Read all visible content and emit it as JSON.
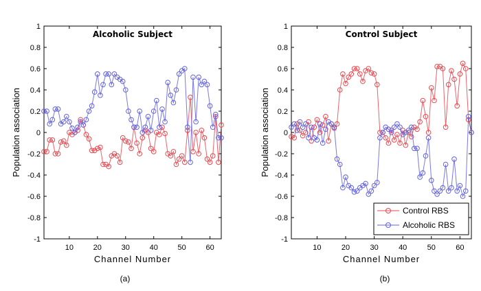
{
  "chart_data": [
    {
      "type": "line",
      "title": "Alcoholic Subject",
      "xlabel": "Channel Number",
      "ylabel": "Population association",
      "caption": "(a)",
      "xlim": [
        1,
        64
      ],
      "ylim": [
        -1,
        1
      ],
      "xticks": [
        10,
        20,
        30,
        40,
        50,
        60
      ],
      "yticks": [
        -1,
        -0.8,
        -0.6,
        -0.4,
        -0.2,
        0,
        0.2,
        0.4,
        0.6,
        0.8,
        1
      ],
      "ytick_labels": [
        "-1",
        "-0.8",
        "-0.6",
        "-0.4",
        "-0.2",
        "0",
        "0.2",
        "0.4",
        "0.6",
        "0.8",
        "1"
      ],
      "legend": false,
      "series": [
        {
          "color": "#e8474f",
          "marker": "circle",
          "x": [
            1,
            2,
            3,
            4,
            5,
            6,
            7,
            8,
            9,
            10,
            11,
            12,
            13,
            14,
            15,
            16,
            17,
            18,
            19,
            20,
            21,
            22,
            23,
            24,
            25,
            26,
            27,
            28,
            29,
            30,
            31,
            32,
            33,
            34,
            35,
            36,
            37,
            38,
            39,
            40,
            41,
            42,
            43,
            44,
            45,
            46,
            47,
            48,
            49,
            50,
            51,
            52,
            53,
            54,
            55,
            56,
            57,
            58,
            59,
            60,
            61,
            62,
            63,
            64
          ],
          "y": [
            -0.18,
            -0.18,
            -0.07,
            -0.07,
            -0.2,
            -0.2,
            -0.09,
            -0.08,
            -0.12,
            0.0,
            -0.02,
            0.0,
            0.02,
            0.12,
            0.07,
            -0.02,
            -0.06,
            -0.17,
            -0.17,
            -0.15,
            -0.14,
            -0.3,
            -0.3,
            -0.32,
            -0.22,
            -0.2,
            -0.22,
            -0.28,
            -0.05,
            -0.08,
            -0.09,
            -0.15,
            0.05,
            -0.1,
            -0.2,
            -0.05,
            0.02,
            0.0,
            -0.15,
            -0.18,
            0.0,
            -0.02,
            0.05,
            -0.01,
            -0.2,
            -0.22,
            -0.18,
            -0.3,
            -0.25,
            -0.22,
            -0.28,
            0.02,
            0.33,
            -0.18,
            0.0,
            -0.2,
            0.02,
            -0.05,
            -0.25,
            -0.28,
            -0.22,
            0.15,
            -0.28,
            0.07
          ]
        },
        {
          "color": "#6060e0",
          "marker": "circle",
          "x": [
            1,
            2,
            3,
            4,
            5,
            6,
            7,
            8,
            9,
            10,
            11,
            12,
            13,
            14,
            15,
            16,
            17,
            18,
            19,
            20,
            21,
            22,
            23,
            24,
            25,
            26,
            27,
            28,
            29,
            30,
            31,
            32,
            33,
            34,
            35,
            36,
            37,
            38,
            39,
            40,
            41,
            42,
            43,
            44,
            45,
            46,
            47,
            48,
            49,
            50,
            51,
            52,
            53,
            54,
            55,
            56,
            57,
            58,
            59,
            60,
            61,
            62,
            63,
            64
          ],
          "y": [
            0.2,
            0.2,
            0.08,
            0.12,
            0.22,
            0.22,
            0.08,
            0.1,
            0.15,
            0.1,
            0.04,
            0.0,
            0.05,
            0.1,
            0.07,
            0.12,
            0.2,
            0.25,
            0.38,
            0.55,
            0.35,
            0.45,
            0.55,
            0.55,
            0.45,
            0.55,
            0.52,
            0.5,
            0.48,
            0.4,
            0.2,
            0.12,
            0.05,
            0.05,
            0.2,
            0.0,
            0.05,
            0.15,
            0.02,
            0.2,
            0.3,
            0.05,
            0.22,
            0.1,
            0.47,
            0.35,
            0.28,
            0.4,
            0.55,
            0.58,
            0.6,
            0.05,
            -0.28,
            0.52,
            0.1,
            0.52,
            0.45,
            0.48,
            0.45,
            0.25,
            0.05,
            0.17,
            -0.05,
            -0.05
          ]
        }
      ]
    },
    {
      "type": "line",
      "title": "Control Subject",
      "xlabel": "Channel Number",
      "ylabel": "Population association",
      "caption": "(b)",
      "xlim": [
        1,
        64
      ],
      "ylim": [
        -1,
        1
      ],
      "xticks": [
        10,
        20,
        30,
        40,
        50,
        60
      ],
      "yticks": [
        -1,
        -0.8,
        -0.6,
        -0.4,
        -0.2,
        0,
        0.2,
        0.4,
        0.6,
        0.8,
        1
      ],
      "ytick_labels": [
        "-1",
        "-0.8",
        "-0.6",
        "-0.4",
        "-0.2",
        "0",
        "0.2",
        "0.4",
        "0.6",
        "0.8",
        "1"
      ],
      "legend": "bottom-right",
      "series": [
        {
          "name": "Control RBS",
          "color": "#e8474f",
          "marker": "circle",
          "x": [
            1,
            2,
            3,
            4,
            5,
            6,
            7,
            8,
            9,
            10,
            11,
            12,
            13,
            14,
            15,
            16,
            17,
            18,
            19,
            20,
            21,
            22,
            23,
            24,
            25,
            26,
            27,
            28,
            29,
            30,
            31,
            32,
            33,
            34,
            35,
            36,
            37,
            38,
            39,
            40,
            41,
            42,
            43,
            44,
            45,
            46,
            47,
            48,
            49,
            50,
            51,
            52,
            53,
            54,
            55,
            56,
            57,
            58,
            59,
            60,
            61,
            62,
            63,
            64
          ],
          "y": [
            -0.04,
            -0.05,
            0.08,
            0.02,
            -0.03,
            0.0,
            0.1,
            -0.08,
            0.05,
            0.12,
            0.0,
            0.07,
            0.15,
            -0.08,
            0.08,
            0.04,
            0.08,
            0.4,
            0.55,
            0.46,
            0.52,
            0.55,
            0.6,
            0.6,
            0.55,
            0.48,
            0.58,
            0.6,
            0.56,
            0.55,
            0.45,
            0.0,
            0.0,
            -0.05,
            -0.1,
            0.02,
            -0.07,
            -0.02,
            -0.1,
            0.02,
            -0.12,
            0.0,
            -0.04,
            0.05,
            0.03,
            0.1,
            0.3,
            0.15,
            0.0,
            0.42,
            0.3,
            0.62,
            0.62,
            0.6,
            0.05,
            0.45,
            0.58,
            0.5,
            0.25,
            0.55,
            0.65,
            0.6,
            0.12,
            0.0
          ]
        },
        {
          "name": "Alcoholic RBS",
          "color": "#6060e0",
          "marker": "circle",
          "x": [
            1,
            2,
            3,
            4,
            5,
            6,
            7,
            8,
            9,
            10,
            11,
            12,
            13,
            14,
            15,
            16,
            17,
            18,
            19,
            20,
            21,
            22,
            23,
            24,
            25,
            26,
            27,
            28,
            29,
            30,
            31,
            32,
            33,
            34,
            35,
            36,
            37,
            38,
            39,
            40,
            41,
            42,
            43,
            44,
            45,
            46,
            47,
            48,
            49,
            50,
            51,
            52,
            53,
            54,
            55,
            56,
            57,
            58,
            59,
            60,
            61,
            62,
            63,
            64
          ],
          "y": [
            0.05,
            0.08,
            0.02,
            0.1,
            0.05,
            0.08,
            -0.05,
            0.05,
            -0.05,
            -0.07,
            0.08,
            -0.1,
            0.03,
            0.1,
            0.08,
            0.05,
            -0.25,
            -0.3,
            -0.52,
            -0.42,
            -0.5,
            -0.52,
            -0.56,
            -0.55,
            -0.52,
            -0.5,
            -0.48,
            -0.58,
            -0.55,
            -0.5,
            -0.47,
            -0.05,
            0.0,
            0.05,
            0.03,
            0.0,
            0.05,
            0.08,
            0.05,
            -0.02,
            0.0,
            0.02,
            0.05,
            -0.15,
            -0.15,
            -0.42,
            -0.38,
            -0.22,
            -0.05,
            -0.45,
            -0.55,
            -0.58,
            -0.55,
            -0.52,
            -0.3,
            -0.55,
            -0.52,
            -0.25,
            -0.55,
            -0.5,
            -0.6,
            -0.55,
            0.15,
            0.0
          ]
        }
      ]
    }
  ]
}
